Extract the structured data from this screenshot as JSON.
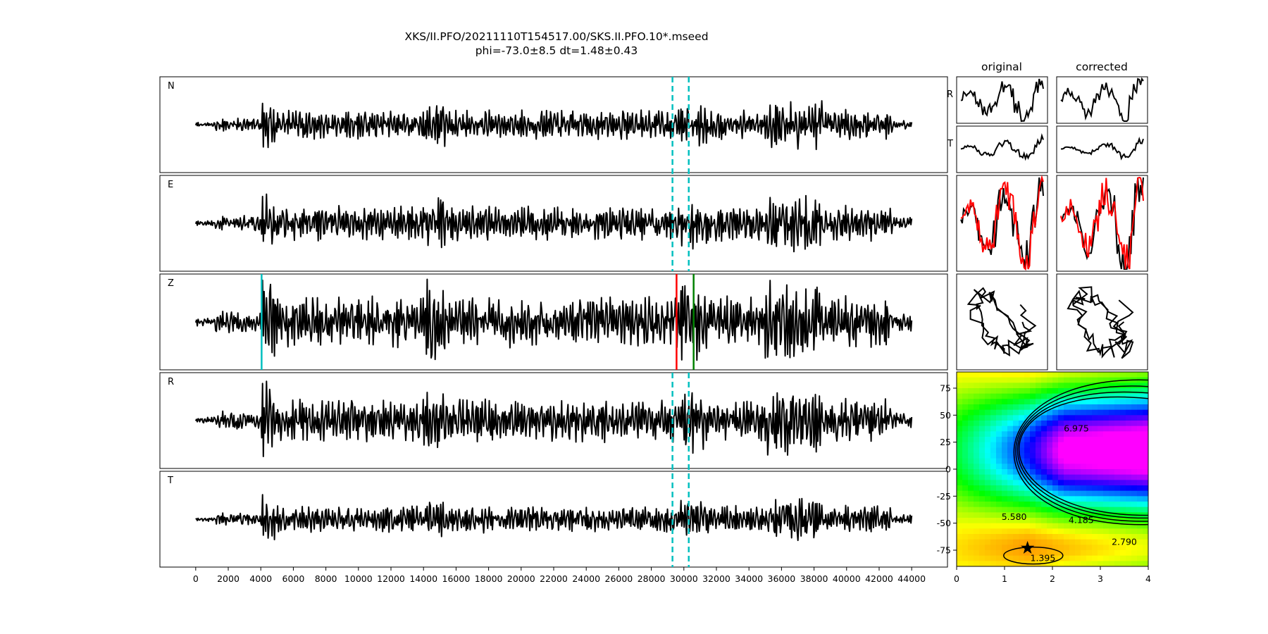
{
  "title_line1": "XKS/II.PFO/20211110T154517.00/SKS.II.PFO.10*.mseed",
  "title_line2": "phi=-73.0±8.5 dt=1.48±0.43",
  "col_original": "original",
  "col_corrected": "corrected",
  "trace_labels": [
    "N",
    "E",
    "Z",
    "R",
    "T"
  ],
  "small_labels": [
    "R",
    "T"
  ],
  "colors": {
    "trace": "#000000",
    "window_marker": "#00bfbf",
    "s_pick": "#ff0000",
    "end_pick": "#008000",
    "red_trace": "#ff0000"
  },
  "chart_data": [
    {
      "type": "line",
      "name": "seismogram-traces",
      "panels": [
        "N",
        "E",
        "Z",
        "R",
        "T"
      ],
      "x_range": [
        0,
        44000
      ],
      "xlim": [
        -2200,
        46200
      ],
      "x_ticks": [
        0,
        2000,
        4000,
        6000,
        8000,
        10000,
        12000,
        14000,
        16000,
        18000,
        20000,
        22000,
        24000,
        26000,
        28000,
        30000,
        32000,
        34000,
        36000,
        38000,
        40000,
        42000,
        44000
      ],
      "window_markers": [
        29300,
        30300
      ],
      "z_picks": [
        {
          "x": 4050,
          "color": "#00bfbf"
        },
        {
          "x": 29550,
          "color": "#ff0000"
        },
        {
          "x": 30600,
          "color": "#008000"
        }
      ]
    },
    {
      "type": "heatmap",
      "name": "splitting-grid",
      "xlim": [
        0,
        4
      ],
      "ylim": [
        -90,
        90
      ],
      "x_ticks": [
        0,
        1,
        2,
        3,
        4
      ],
      "y_ticks": [
        75,
        50,
        25,
        0,
        -25,
        -50,
        -75
      ],
      "contour_levels": [
        "1.395",
        "2.790",
        "4.185",
        "5.580",
        "6.975"
      ],
      "best_fit": {
        "dt": 1.48,
        "phi": -73.0
      }
    }
  ]
}
